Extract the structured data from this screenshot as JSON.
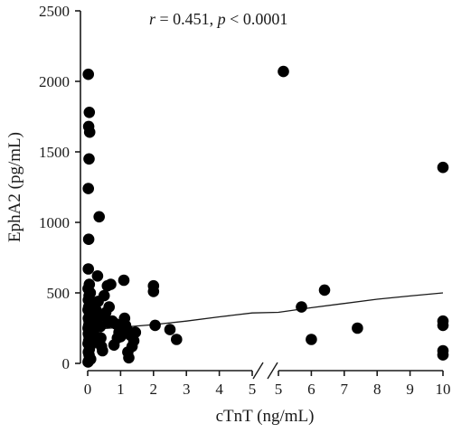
{
  "chart_data": {
    "type": "scatter",
    "annotation": {
      "r_symbol": "r",
      "r_text": " = 0.451, ",
      "p_symbol": "p",
      "p_text": " < 0.0001"
    },
    "xlabel": "cTnT (ng/mL)",
    "ylabel": "EphA2 (pg/mL)",
    "ylim": [
      0,
      2500
    ],
    "yticks": [
      0,
      500,
      1000,
      1500,
      2000,
      2500
    ],
    "x_segments": [
      {
        "range": [
          0,
          5
        ],
        "ticks": [
          0,
          1,
          2,
          3,
          4,
          5
        ]
      },
      {
        "range": [
          5,
          10
        ],
        "ticks": [
          5,
          6,
          7,
          8,
          9,
          10
        ]
      }
    ],
    "axis_break": "x between 5 and 5",
    "grid": false,
    "colors": {
      "points": "#000000",
      "axes": "#1a1a1a"
    },
    "fit_line": [
      [
        0,
        240
      ],
      [
        1,
        255
      ],
      [
        2,
        275
      ],
      [
        3,
        300
      ],
      [
        4,
        330
      ],
      [
        5,
        358
      ],
      [
        5,
        362
      ],
      [
        6,
        395
      ],
      [
        7,
        425
      ],
      [
        8,
        455
      ],
      [
        9,
        478
      ],
      [
        10,
        500
      ]
    ],
    "points": [
      [
        0.02,
        2050
      ],
      [
        0.05,
        1780
      ],
      [
        0.03,
        1680
      ],
      [
        0.06,
        1640
      ],
      [
        0.04,
        1450
      ],
      [
        0.02,
        1240
      ],
      [
        0.03,
        880
      ],
      [
        0.35,
        1040
      ],
      [
        0.02,
        670
      ],
      [
        0.05,
        560
      ],
      [
        0.01,
        530
      ],
      [
        0.08,
        500
      ],
      [
        0.04,
        480
      ],
      [
        0.02,
        450
      ],
      [
        0.06,
        420
      ],
      [
        0.03,
        400
      ],
      [
        0.01,
        380
      ],
      [
        0.05,
        360
      ],
      [
        0.07,
        340
      ],
      [
        0.02,
        320
      ],
      [
        0.04,
        300
      ],
      [
        0.06,
        290
      ],
      [
        0.03,
        270
      ],
      [
        0.01,
        250
      ],
      [
        0.08,
        240
      ],
      [
        0.05,
        220
      ],
      [
        0.02,
        210
      ],
      [
        0.04,
        190
      ],
      [
        0.06,
        180
      ],
      [
        0.03,
        160
      ],
      [
        0.01,
        140
      ],
      [
        0.07,
        120
      ],
      [
        0.05,
        100
      ],
      [
        0.02,
        80
      ],
      [
        0.04,
        60
      ],
      [
        0.06,
        40
      ],
      [
        0.03,
        20
      ],
      [
        0.01,
        10
      ],
      [
        0.09,
        30
      ],
      [
        0.1,
        350
      ],
      [
        0.12,
        420
      ],
      [
        0.15,
        310
      ],
      [
        0.18,
        260
      ],
      [
        0.2,
        200
      ],
      [
        0.22,
        150
      ],
      [
        0.25,
        380
      ],
      [
        0.28,
        300
      ],
      [
        0.3,
        620
      ],
      [
        0.32,
        440
      ],
      [
        0.35,
        330
      ],
      [
        0.38,
        260
      ],
      [
        0.4,
        180
      ],
      [
        0.42,
        120
      ],
      [
        0.45,
        90
      ],
      [
        0.5,
        480
      ],
      [
        0.55,
        360
      ],
      [
        0.6,
        550
      ],
      [
        0.62,
        290
      ],
      [
        0.65,
        400
      ],
      [
        0.7,
        560
      ],
      [
        0.75,
        300
      ],
      [
        0.8,
        130
      ],
      [
        0.85,
        280
      ],
      [
        0.9,
        180
      ],
      [
        0.95,
        220
      ],
      [
        1.0,
        190
      ],
      [
        1.05,
        250
      ],
      [
        1.1,
        590
      ],
      [
        1.12,
        320
      ],
      [
        1.15,
        270
      ],
      [
        1.2,
        240
      ],
      [
        1.22,
        80
      ],
      [
        1.25,
        40
      ],
      [
        1.3,
        200
      ],
      [
        1.35,
        120
      ],
      [
        1.4,
        160
      ],
      [
        1.45,
        220
      ],
      [
        2.0,
        550
      ],
      [
        2.0,
        510
      ],
      [
        2.05,
        270
      ],
      [
        2.5,
        240
      ],
      [
        2.7,
        170
      ],
      [
        5.15,
        2070
      ],
      [
        5.7,
        400
      ],
      [
        6.0,
        170
      ],
      [
        6.4,
        520
      ],
      [
        7.4,
        250
      ],
      [
        10.0,
        1390
      ],
      [
        10.0,
        300
      ],
      [
        10.0,
        270
      ],
      [
        10.0,
        90
      ],
      [
        10.0,
        60
      ]
    ]
  }
}
